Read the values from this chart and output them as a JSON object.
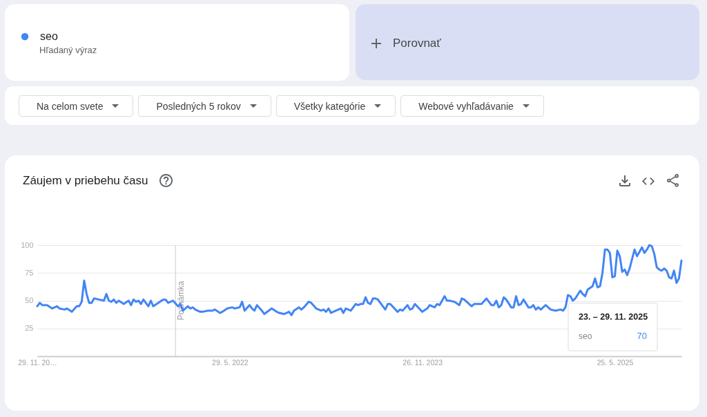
{
  "chart_data": {
    "type": "line",
    "title": "Záujem v priebehu času",
    "x": [
      "2020-11-29",
      "2020-12-06",
      "2020-12-13",
      "2020-12-27",
      "2021-01-10",
      "2021-01-24",
      "2021-01-31",
      "2021-02-14",
      "2021-02-21",
      "2021-03-07",
      "2021-03-21",
      "2021-03-28",
      "2021-04-04",
      "2021-04-11",
      "2021-04-18",
      "2021-04-25",
      "2021-05-02",
      "2021-05-09",
      "2021-05-23",
      "2021-06-06",
      "2021-06-13",
      "2021-06-20",
      "2021-06-27",
      "2021-07-04",
      "2021-07-11",
      "2021-07-18",
      "2021-08-01",
      "2021-08-15",
      "2021-08-22",
      "2021-08-29",
      "2021-09-05",
      "2021-09-12",
      "2021-09-19",
      "2021-09-26",
      "2021-10-10",
      "2021-10-17",
      "2021-10-24",
      "2021-11-07",
      "2021-11-21",
      "2021-11-28",
      "2021-12-05",
      "2021-12-19",
      "2022-01-02",
      "2022-01-09",
      "2022-01-16",
      "2022-01-30",
      "2022-02-06",
      "2022-02-13",
      "2022-02-20",
      "2022-03-06",
      "2022-03-13",
      "2022-03-27",
      "2022-04-10",
      "2022-04-17",
      "2022-05-01",
      "2022-05-08",
      "2022-05-22",
      "2022-06-05",
      "2022-06-12",
      "2022-06-26",
      "2022-07-03",
      "2022-07-10",
      "2022-07-24",
      "2022-07-31",
      "2022-08-07",
      "2022-08-14",
      "2022-08-28",
      "2022-09-04",
      "2022-09-25",
      "2022-10-09",
      "2022-10-16",
      "2022-10-30",
      "2022-11-13",
      "2022-11-20",
      "2022-11-27",
      "2022-12-11",
      "2022-12-18",
      "2022-12-25",
      "2023-01-08",
      "2023-01-15",
      "2023-01-29",
      "2023-02-12",
      "2023-02-19",
      "2023-02-26",
      "2023-03-05",
      "2023-03-12",
      "2023-03-26",
      "2023-04-09",
      "2023-04-16",
      "2023-04-23",
      "2023-05-07",
      "2023-05-21",
      "2023-05-28",
      "2023-06-04",
      "2023-06-11",
      "2023-06-18",
      "2023-06-25",
      "2023-07-02",
      "2023-07-09",
      "2023-07-16",
      "2023-07-23",
      "2023-08-13",
      "2023-08-20",
      "2023-08-27",
      "2023-09-17",
      "2023-09-24",
      "2023-10-01",
      "2023-10-15",
      "2023-10-22",
      "2023-10-29",
      "2023-11-05",
      "2023-11-26",
      "2023-12-10",
      "2023-12-17",
      "2023-12-24",
      "2023-12-31",
      "2024-01-07",
      "2024-01-14",
      "2024-01-28",
      "2024-02-04",
      "2024-02-11",
      "2024-02-25",
      "2024-03-10",
      "2024-03-17",
      "2024-03-24",
      "2024-04-14",
      "2024-04-21",
      "2024-05-05",
      "2024-05-12",
      "2024-05-26",
      "2024-06-09",
      "2024-06-16",
      "2024-06-23",
      "2024-06-30",
      "2024-07-07",
      "2024-07-14",
      "2024-07-21",
      "2024-08-04",
      "2024-08-11",
      "2024-08-18",
      "2024-08-25",
      "2024-09-01",
      "2024-09-08",
      "2024-09-22",
      "2024-09-29",
      "2024-10-06",
      "2024-10-13",
      "2024-10-20",
      "2024-10-27",
      "2024-11-10",
      "2024-11-24",
      "2024-12-08",
      "2024-12-22",
      "2024-12-29",
      "2025-01-05",
      "2025-01-12",
      "2025-01-19",
      "2025-01-26",
      "2025-02-02",
      "2025-02-16",
      "2025-02-23",
      "2025-03-02",
      "2025-03-09",
      "2025-03-23",
      "2025-03-30",
      "2025-04-06",
      "2025-04-13",
      "2025-04-20",
      "2025-04-27",
      "2025-05-04",
      "2025-05-11",
      "2025-05-18",
      "2025-05-25",
      "2025-06-01",
      "2025-06-08",
      "2025-06-15",
      "2025-06-22",
      "2025-06-29",
      "2025-07-06",
      "2025-07-20",
      "2025-07-27",
      "2025-08-03",
      "2025-08-10",
      "2025-08-17",
      "2025-08-24",
      "2025-08-31",
      "2025-09-07",
      "2025-09-14",
      "2025-09-21",
      "2025-09-28",
      "2025-10-05",
      "2025-10-12",
      "2025-10-19",
      "2025-10-26",
      "2025-11-02",
      "2025-11-09",
      "2025-11-16",
      "2025-11-23",
      "2025-11-30"
    ],
    "series": [
      {
        "name": "seo",
        "color": "#4285f4",
        "values": [
          45,
          48,
          46,
          46,
          43,
          45,
          43,
          42,
          43,
          40,
          45,
          45,
          49,
          68,
          56,
          48,
          48,
          52,
          51,
          50,
          56,
          50,
          49,
          51,
          48,
          50,
          47,
          50,
          46,
          51,
          49,
          50,
          47,
          51,
          45,
          50,
          45,
          48,
          51,
          51,
          48,
          50,
          45,
          47,
          41,
          45,
          43,
          44,
          42,
          40,
          40,
          41,
          41,
          42,
          39,
          40,
          43,
          44,
          43,
          44,
          49,
          41,
          46,
          43,
          41,
          46,
          41,
          38,
          43,
          40,
          39,
          38,
          40,
          37,
          41,
          44,
          42,
          44,
          49,
          48,
          43,
          41,
          42,
          40,
          43,
          39,
          41,
          43,
          39,
          43,
          41,
          47,
          46,
          47,
          47,
          53,
          48,
          47,
          52,
          52,
          51,
          42,
          47,
          47,
          40,
          42,
          41,
          46,
          42,
          43,
          47,
          40,
          43,
          46,
          45,
          44,
          47,
          46,
          54,
          50,
          50,
          49,
          46,
          52,
          51,
          45,
          47,
          47,
          47,
          52,
          46,
          46,
          50,
          44,
          46,
          53,
          51,
          44,
          44,
          54,
          46,
          47,
          51,
          44,
          44,
          46,
          42,
          44,
          42,
          46,
          42,
          41,
          42,
          41,
          44,
          55,
          54,
          50,
          52,
          59,
          56,
          54,
          60,
          63,
          70,
          62,
          63,
          75,
          96,
          96,
          93,
          71,
          72,
          95,
          90,
          76,
          78,
          73,
          79,
          96,
          90,
          94,
          98,
          93,
          96,
          100,
          99,
          92,
          80,
          78,
          77,
          79,
          77,
          71,
          70,
          77,
          66,
          70,
          86
        ]
      }
    ],
    "xlim": [
      "2020-11-29",
      "2025-11-30"
    ],
    "xticks": [
      {
        "value": "2020-11-29",
        "label": "29. 11. 20…"
      },
      {
        "value": "2022-05-29",
        "label": "29. 5. 2022"
      },
      {
        "value": "2023-11-26",
        "label": "26. 11. 2023"
      },
      {
        "value": "2025-05-25",
        "label": "25. 5. 2025"
      }
    ],
    "ylim": [
      0,
      100
    ],
    "yticks": [
      25,
      50,
      75,
      100
    ],
    "grid": "y",
    "legend": "top left",
    "ref_lines": [
      {
        "axis": "x",
        "value": "2021-12-26",
        "label": "Poznámka"
      }
    ],
    "annotations": [
      "Hľadaný výraz",
      "Porovnať",
      "Na celom svete",
      "Posledných 5 rokov",
      "Všetky kategórie",
      "Webové vyhľadávanie",
      "23. – 29. 11. 2025",
      "70"
    ]
  }
}
